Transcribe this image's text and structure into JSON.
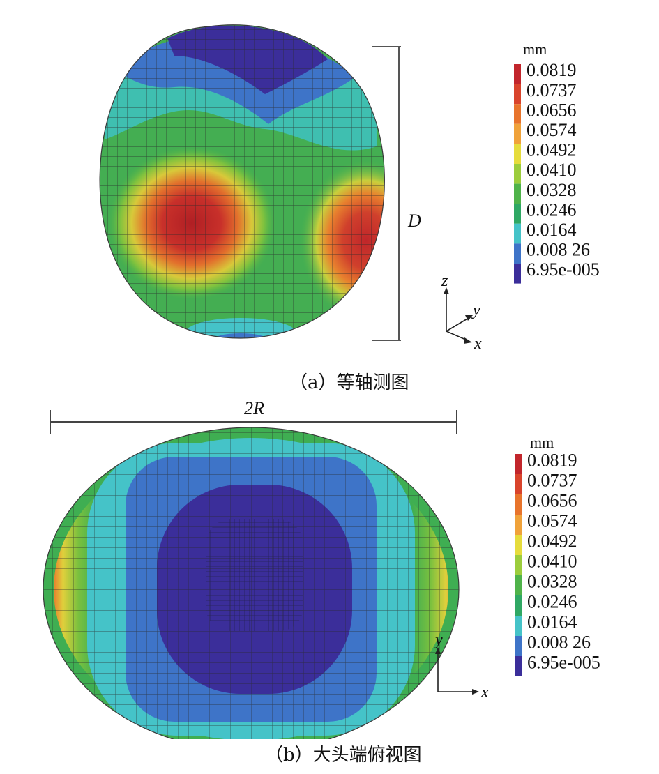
{
  "figure_a": {
    "caption": "（a）等轴测图",
    "dimension_label": "D",
    "axes": {
      "z": "z",
      "y": "y",
      "x": "x"
    },
    "legend": {
      "unit": "mm",
      "values": [
        "0.0819",
        "0.0737",
        "0.0656",
        "0.0574",
        "0.0492",
        "0.0410",
        "0.0328",
        "0.0246",
        "0.0164",
        "0.008 26",
        "6.95e-005"
      ],
      "colors": [
        "#c2262c",
        "#d9442c",
        "#e8742c",
        "#f0a23a",
        "#e6dc3c",
        "#9ccd3c",
        "#4fb34a",
        "#2fa864",
        "#45c3c8",
        "#3e74c8",
        "#3b2e9a"
      ]
    }
  },
  "figure_b": {
    "caption": "（b）大头端俯视图",
    "dimension_label": "2R",
    "axes": {
      "y": "y",
      "x": "x"
    },
    "legend": {
      "unit": "mm",
      "values": [
        "0.0819",
        "0.0737",
        "0.0656",
        "0.0574",
        "0.0492",
        "0.0410",
        "0.0328",
        "0.0246",
        "0.0164",
        "0.008 26",
        "6.95e-005"
      ],
      "colors": [
        "#c2262c",
        "#d9442c",
        "#e8742c",
        "#f0a23a",
        "#e6dc3c",
        "#9ccd3c",
        "#4fb34a",
        "#2fa864",
        "#45c3c8",
        "#3e74c8",
        "#3b2e9a"
      ]
    }
  }
}
